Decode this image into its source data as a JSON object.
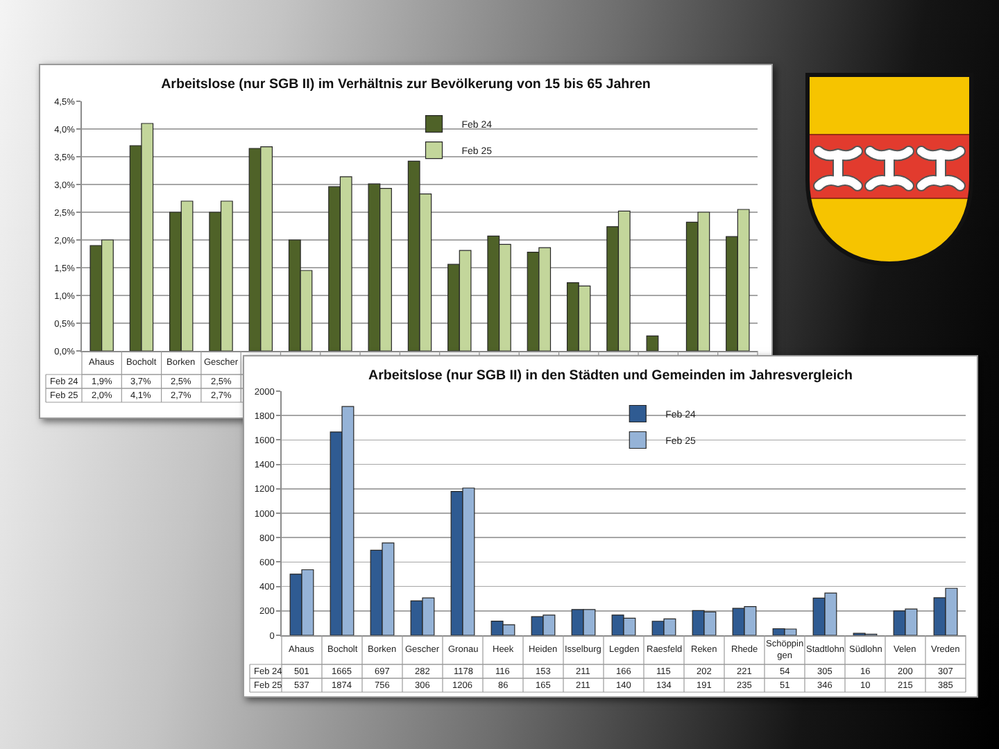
{
  "chart_data": [
    {
      "type": "bar",
      "title": "Arbeitslose (nur SGB II) im Verhältnis zur Bevölkerung von 15 bis 65 Jahren",
      "categories": [
        "Ahaus",
        "Bocholt",
        "Borken",
        "Gescher",
        null,
        null,
        null,
        null,
        null,
        null,
        null,
        null,
        null,
        null,
        null,
        null,
        null
      ],
      "series": [
        {
          "name": "Feb 24",
          "color": "#4f6228",
          "values": [
            1.9,
            3.7,
            2.5,
            2.5,
            3.65,
            2.0,
            2.96,
            3.01,
            3.42,
            1.56,
            2.07,
            1.78,
            1.23,
            2.24,
            0.27,
            2.32,
            2.06
          ],
          "value_labels": [
            "1,9%",
            "3,7%",
            "2,5%",
            "2,5%",
            null,
            null,
            null,
            null,
            null,
            null,
            null,
            null,
            null,
            null,
            null,
            null,
            null
          ]
        },
        {
          "name": "Feb 25",
          "color": "#c3d69b",
          "values": [
            2.0,
            4.1,
            2.7,
            2.7,
            3.68,
            1.45,
            3.14,
            2.93,
            2.83,
            1.81,
            1.92,
            1.86,
            1.17,
            2.52,
            null,
            2.5,
            2.55
          ],
          "value_labels": [
            "2,0%",
            "4,1%",
            "2,7%",
            "2,7%",
            null,
            null,
            null,
            null,
            null,
            null,
            null,
            null,
            null,
            null,
            null,
            null,
            null
          ]
        }
      ],
      "ylim": [
        0,
        4.5
      ],
      "yticks": [
        {
          "value": 0,
          "label": "0,0%"
        },
        {
          "value": 0.5,
          "label": "0,5%"
        },
        {
          "value": 1,
          "label": "1,0%"
        },
        {
          "value": 1.5,
          "label": "1,5%"
        },
        {
          "value": 2,
          "label": "2,0%"
        },
        {
          "value": 2.5,
          "label": "2,5%"
        },
        {
          "value": 3,
          "label": "3,0%"
        },
        {
          "value": 3.5,
          "label": "3,5%"
        },
        {
          "value": 4,
          "label": "4,0%"
        },
        {
          "value": 4.5,
          "label": "4,5%"
        }
      ],
      "grid": "y",
      "legend": "top"
    },
    {
      "type": "bar",
      "title": "Arbeitslose (nur SGB II) in den Städten und Gemeinden im Jahresvergleich",
      "categories": [
        "Ahaus",
        "Bocholt",
        "Borken",
        "Gescher",
        "Gronau",
        "Heek",
        "Heiden",
        "Isselburg",
        "Legden",
        "Raesfeld",
        "Reken",
        "Rhede",
        "Schöppingen",
        "Stadtlohn",
        "Südlohn",
        "Velen",
        "Vreden"
      ],
      "series": [
        {
          "name": "Feb 24",
          "color": "#2f5b92",
          "values": [
            501,
            1665,
            697,
            282,
            1178,
            116,
            153,
            211,
            166,
            115,
            202,
            221,
            54,
            305,
            16,
            200,
            307
          ]
        },
        {
          "name": "Feb 25",
          "color": "#95b3d7",
          "values": [
            537,
            1874,
            756,
            306,
            1206,
            86,
            165,
            211,
            140,
            134,
            191,
            235,
            51,
            346,
            10,
            215,
            385
          ]
        }
      ],
      "ylim": [
        0,
        2000
      ],
      "yticks": [
        0,
        200,
        400,
        600,
        800,
        1000,
        1200,
        1400,
        1600,
        1800,
        2000
      ],
      "grid": "y",
      "legend": "top",
      "data_labels": true
    }
  ]
}
